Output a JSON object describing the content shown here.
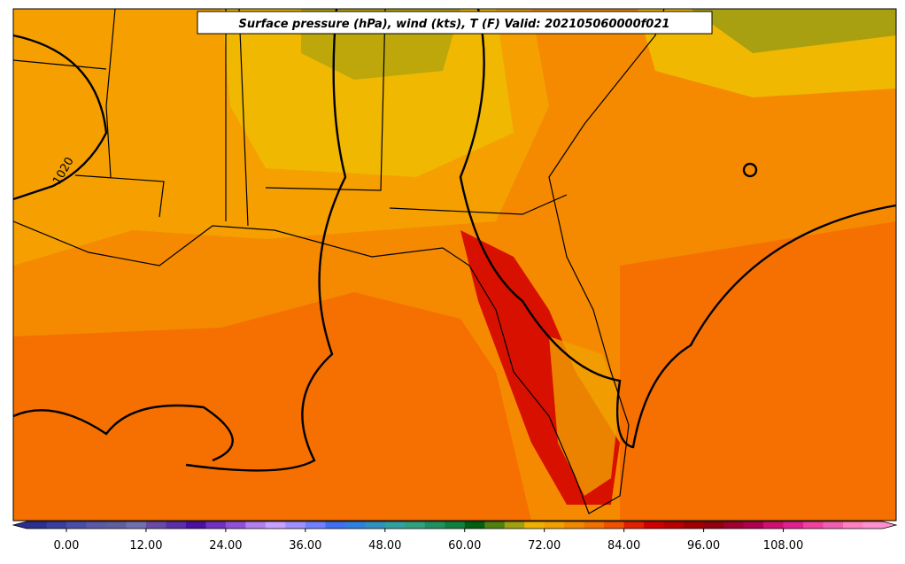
{
  "title": "Surface pressure (hPa), wind (kts), T (F) Valid: 202105060000f021",
  "contour_labels": [
    "1020"
  ],
  "colorbar": {
    "min": -6,
    "max": 123,
    "step": 3,
    "colors": [
      "#2b2f8f",
      "#3a3f9f",
      "#4a4ea8",
      "#5a5aa8",
      "#6060a0",
      "#7070b0",
      "#6a4aa8",
      "#5a30a8",
      "#4a10a0",
      "#7030c0",
      "#9050d8",
      "#b080f0",
      "#c8a0ff",
      "#a090ff",
      "#7080ff",
      "#4070f0",
      "#3080e0",
      "#3090c0",
      "#30a0a0",
      "#30a080",
      "#209060",
      "#108040",
      "#006010",
      "#508010",
      "#a0a010",
      "#f0b000",
      "#f0a000",
      "#f08800",
      "#f07000",
      "#f05000",
      "#e02000",
      "#d00000",
      "#b80000",
      "#a00000",
      "#900010",
      "#a00030",
      "#b00050",
      "#d01070",
      "#e02090",
      "#f040a0",
      "#f060b0",
      "#ff80c0",
      "#ff90d0"
    ],
    "ticks": [
      {
        "value": 0,
        "label": "0.00"
      },
      {
        "value": 12,
        "label": "12.00"
      },
      {
        "value": 24,
        "label": "24.00"
      },
      {
        "value": 36,
        "label": "36.00"
      },
      {
        "value": 48,
        "label": "48.00"
      },
      {
        "value": 60,
        "label": "60.00"
      },
      {
        "value": 72,
        "label": "72.00"
      },
      {
        "value": 84,
        "label": "84.00"
      },
      {
        "value": 96,
        "label": "96.00"
      },
      {
        "value": 108,
        "label": "108.00"
      }
    ]
  }
}
